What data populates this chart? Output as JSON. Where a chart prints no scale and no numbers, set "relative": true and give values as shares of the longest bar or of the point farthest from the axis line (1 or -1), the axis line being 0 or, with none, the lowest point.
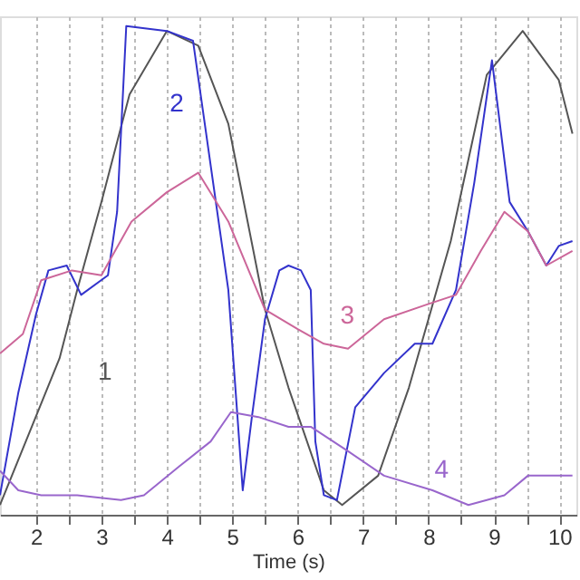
{
  "chart_data": {
    "type": "line",
    "xlabel": "Time (s)",
    "relative": true,
    "xlim": [
      1.45,
      10.26
    ],
    "xticks": [
      2,
      {
        "value": 2.5,
        "label": null
      },
      3,
      {
        "value": 3.5,
        "label": null
      },
      4,
      {
        "value": 4.5,
        "label": null
      },
      5,
      {
        "value": 5.5,
        "label": null
      },
      6,
      {
        "value": 6.5,
        "label": null
      },
      7,
      {
        "value": 7.5,
        "label": null
      },
      8,
      {
        "value": 8.5,
        "label": null
      },
      9,
      {
        "value": 9.5,
        "label": null
      },
      10
    ],
    "tick_labels": "x",
    "grid": "x",
    "legend": false,
    "marker": "none",
    "line_style": "solid",
    "series": [
      {
        "name": "1",
        "color": "#555555",
        "x": [
          1.45,
          2.36,
          2.63,
          3,
          3.43,
          4,
          4.48,
          4.94,
          5.5,
          5.86,
          6.4,
          6.68,
          7.23,
          7.7,
          8.34,
          8.89,
          9.44,
          9.99,
          10.2
        ],
        "values": [
          0.02,
          0.32,
          0.46,
          0.64,
          0.86,
          0.99,
          0.96,
          0.8,
          0.42,
          0.26,
          0.05,
          0.02,
          0.08,
          0.26,
          0.56,
          0.9,
          0.99,
          0.89,
          0.78
        ]
      },
      {
        "name": "2",
        "color": "#3333cc",
        "x": [
          1.45,
          1.73,
          2.0,
          2.19,
          2.47,
          2.69,
          3.1,
          3.24,
          3.38,
          4,
          4.4,
          4.94,
          5.08,
          5.16,
          5.3,
          5.5,
          5.72,
          5.86,
          6.05,
          6.2,
          6.27,
          6.4,
          6.6,
          6.88,
          7.32,
          7.79,
          8.06,
          8.42,
          8.7,
          8.97,
          9.24,
          9.52,
          9.8,
          9.99,
          10.2
        ],
        "values": [
          0.04,
          0.25,
          0.41,
          0.5,
          0.51,
          0.45,
          0.49,
          0.62,
          1.0,
          0.99,
          0.97,
          0.46,
          0.2,
          0.05,
          0.2,
          0.4,
          0.5,
          0.51,
          0.5,
          0.46,
          0.15,
          0.04,
          0.03,
          0.22,
          0.29,
          0.35,
          0.35,
          0.46,
          0.68,
          0.93,
          0.64,
          0.58,
          0.51,
          0.55,
          0.56
        ]
      },
      {
        "name": "3",
        "color": "#cc6699",
        "x": [
          1.45,
          1.8,
          2.08,
          2.55,
          3,
          3.46,
          4,
          4.48,
          4.94,
          5.5,
          6.0,
          6.4,
          6.77,
          7.32,
          7.97,
          8.42,
          8.8,
          9.16,
          9.52,
          9.8,
          10.2
        ],
        "values": [
          0.33,
          0.37,
          0.48,
          0.5,
          0.49,
          0.6,
          0.66,
          0.7,
          0.6,
          0.42,
          0.38,
          0.35,
          0.34,
          0.4,
          0.43,
          0.45,
          0.54,
          0.62,
          0.58,
          0.51,
          0.54
        ]
      },
      {
        "name": "4",
        "color": "#9966cc",
        "x": [
          1.45,
          1.73,
          2.08,
          2.63,
          3.3,
          3.65,
          4.2,
          4.67,
          4.98,
          5.4,
          5.86,
          6.2,
          6.77,
          7.32,
          8.06,
          8.61,
          9.16,
          9.52,
          10.2
        ],
        "values": [
          0.09,
          0.05,
          0.04,
          0.04,
          0.03,
          0.04,
          0.1,
          0.15,
          0.21,
          0.2,
          0.18,
          0.18,
          0.13,
          0.08,
          0.05,
          0.02,
          0.04,
          0.08,
          0.08
        ]
      }
    ]
  }
}
